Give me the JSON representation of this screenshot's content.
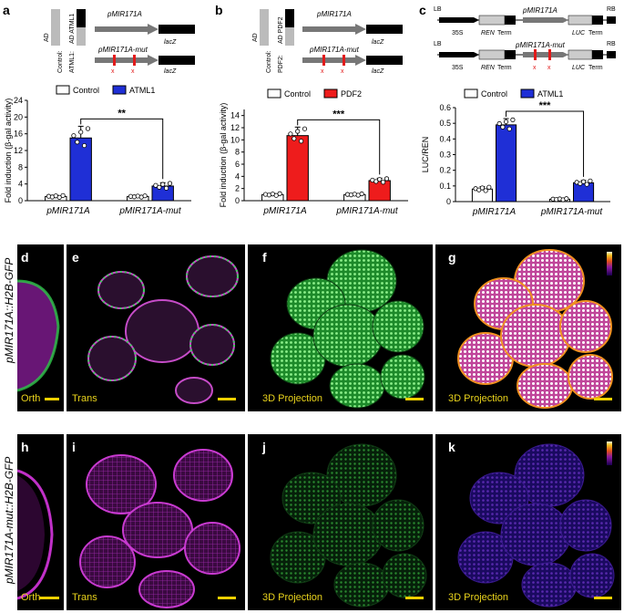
{
  "panels": {
    "a": {
      "letter": "a",
      "constructs": {
        "gene1": "pMIR171A",
        "gene2": "pMIR171A-mut",
        "reporter": "lacZ",
        "ad": "AD",
        "ad_tf": "AD ATML1",
        "control_label": "Control:",
        "tf_label": "ATML1:",
        "mut_mark": "x"
      },
      "legend": [
        "Control",
        "ATML1"
      ],
      "colors": {
        "control": "#ffffff",
        "treatment": "#1f2fd6"
      },
      "chart_data": {
        "type": "bar",
        "categories": [
          "pMIR171A",
          "pMIR171A-mut"
        ],
        "series": [
          {
            "name": "Control",
            "values": [
              1.0,
              1.0
            ]
          },
          {
            "name": "ATML1",
            "values": [
              15.0,
              3.5
            ]
          }
        ],
        "errors": {
          "Control": [
            0.3,
            0.2
          ],
          "ATML1": [
            2.8,
            0.8
          ]
        },
        "ylabel": "Fold induction (β-gal activity)",
        "ylim": [
          0,
          24
        ],
        "yticks": [
          0,
          4,
          8,
          12,
          16,
          20,
          24
        ],
        "significance": "**"
      }
    },
    "b": {
      "letter": "b",
      "constructs": {
        "gene1": "pMIR171A",
        "gene2": "pMIR171A-mut",
        "reporter": "lacZ",
        "ad": "AD",
        "ad_tf": "AD PDF2",
        "control_label": "Control:",
        "tf_label": "PDF2:",
        "mut_mark": "x"
      },
      "legend": [
        "Control",
        "PDF2"
      ],
      "colors": {
        "control": "#ffffff",
        "treatment": "#ee1c1c"
      },
      "chart_data": {
        "type": "bar",
        "categories": [
          "pMIR171A",
          "pMIR171A-mut"
        ],
        "series": [
          {
            "name": "Control",
            "values": [
              1.0,
              1.0
            ]
          },
          {
            "name": "PDF2",
            "values": [
              10.7,
              3.3
            ]
          }
        ],
        "errors": {
          "Control": [
            0.2,
            0.15
          ],
          "PDF2": [
            1.4,
            0.4
          ]
        },
        "ylabel": "Fold induction (β-gal activity)",
        "ylim": [
          0,
          15
        ],
        "yticks": [
          0,
          2,
          4,
          6,
          8,
          10,
          12,
          14
        ],
        "significance": "***"
      }
    },
    "c": {
      "letter": "c",
      "constructs": {
        "lb": "LB",
        "rb": "RB",
        "promoter35s": "35S",
        "ren": "REN",
        "luc": "LUC",
        "term": "Term",
        "gene1": "pMIR171A",
        "gene2": "pMIR171A-mut",
        "mut_mark": "x"
      },
      "legend": [
        "Control",
        "ATML1"
      ],
      "colors": {
        "control": "#ffffff",
        "treatment": "#1f2fd6"
      },
      "chart_data": {
        "type": "bar",
        "categories": [
          "pMIR171A",
          "pMIR171A-mut"
        ],
        "series": [
          {
            "name": "Control",
            "values": [
              0.08,
              0.015
            ]
          },
          {
            "name": "ATML1",
            "values": [
              0.49,
              0.12
            ]
          }
        ],
        "errors": {
          "Control": [
            0.015,
            0.005
          ],
          "ATML1": [
            0.04,
            0.015
          ]
        },
        "ylabel": "LUC/REN",
        "ylim": [
          0,
          0.6
        ],
        "yticks": [
          0,
          0.1,
          0.2,
          0.3,
          0.4,
          0.5,
          0.6
        ],
        "significance": "***"
      }
    }
  },
  "images": {
    "row1_label": "pMIR171A::H2B-GFP",
    "row2_label": "pMIR171A-mut::H2B-GFP",
    "d": {
      "letter": "d",
      "caption": "Orth"
    },
    "e": {
      "letter": "e",
      "caption": "Trans"
    },
    "f": {
      "letter": "f",
      "caption": "3D Projection"
    },
    "g": {
      "letter": "g",
      "caption": "3D Projection"
    },
    "h": {
      "letter": "h",
      "caption": "Orth"
    },
    "i": {
      "letter": "i",
      "caption": "Trans"
    },
    "j": {
      "letter": "j",
      "caption": "3D Projection"
    },
    "k": {
      "letter": "k",
      "caption": "3D Projection"
    }
  }
}
